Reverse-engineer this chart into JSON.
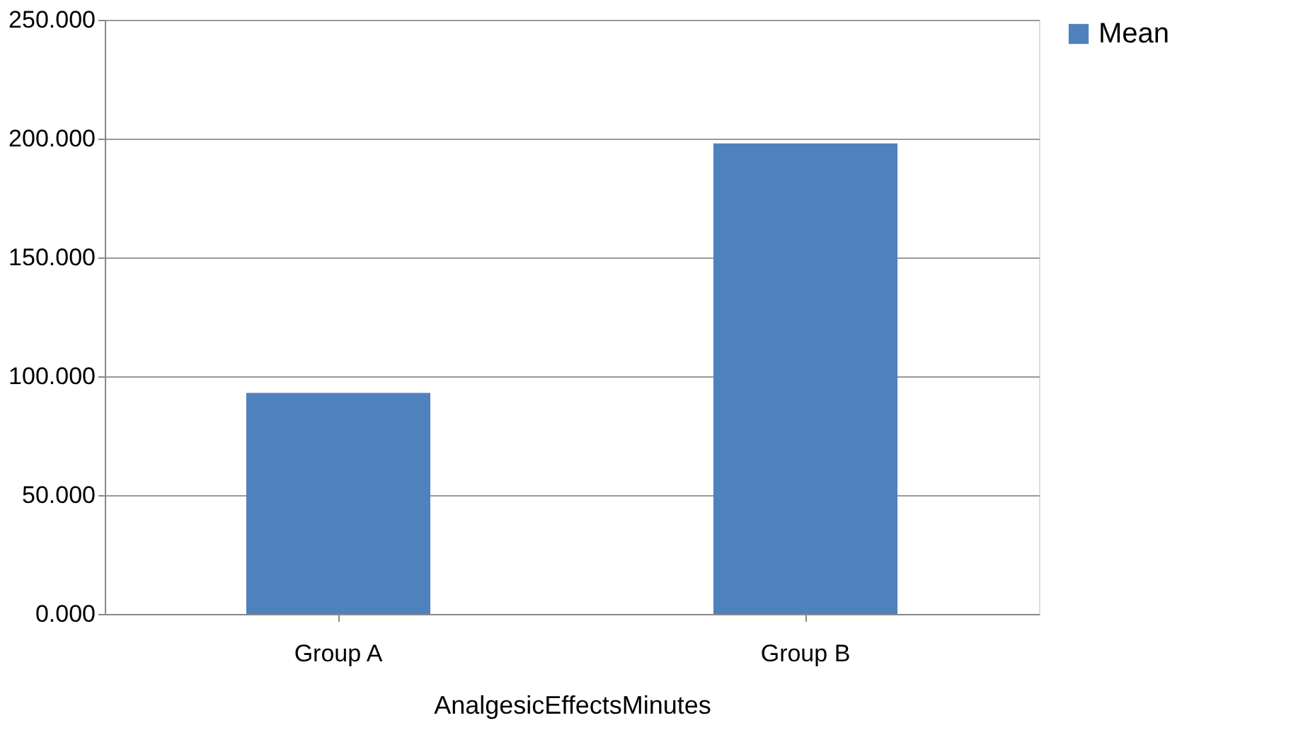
{
  "chart_data": {
    "type": "bar",
    "xlabel": "AnalgesicEffectsMinutes",
    "categories": [
      "Group A",
      "Group B"
    ],
    "series": [
      {
        "name": "Mean",
        "color": "#4f81bd",
        "values": [
          93,
          198
        ]
      }
    ],
    "ylim": [
      0,
      250
    ],
    "yticks": [
      {
        "value": 0,
        "label": "0.000"
      },
      {
        "value": 50,
        "label": "50.000"
      },
      {
        "value": 100,
        "label": "100.000"
      },
      {
        "value": 150,
        "label": "150.000"
      },
      {
        "value": 200,
        "label": "200.000"
      },
      {
        "value": 250,
        "label": "250.000"
      }
    ],
    "grid": "y",
    "legend": "right"
  }
}
